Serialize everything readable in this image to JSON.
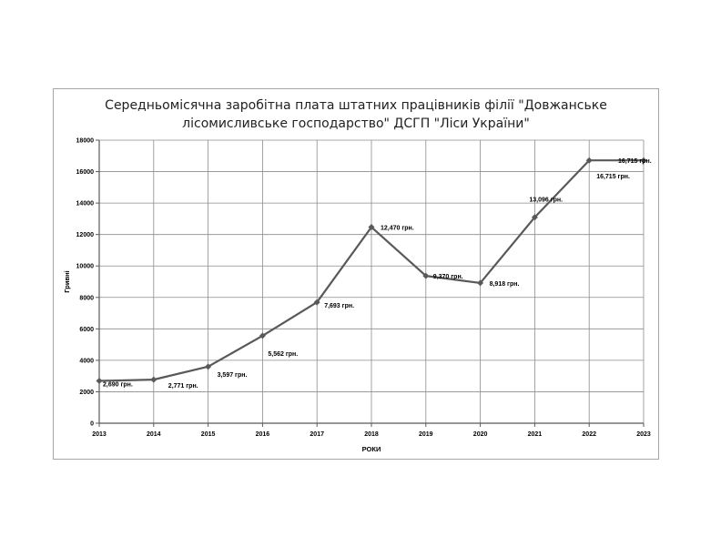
{
  "chart_data": {
    "type": "line",
    "title": "Середньомісячна заробітна плата штатних працівників філії \"Довжанське лісомисливське господарство\" ДСГП \"Ліси України\"",
    "xlabel": "РОКИ",
    "ylabel": "Гривні",
    "categories": [
      "2013",
      "2014",
      "2015",
      "2016",
      "2017",
      "2018",
      "2019",
      "2020",
      "2021",
      "2022",
      "2023"
    ],
    "yticks": [
      "0",
      "2000",
      "4000",
      "6000",
      "8000",
      "10000",
      "12000",
      "14000",
      "16000",
      "18000"
    ],
    "ylim": [
      0,
      18000
    ],
    "grid": true,
    "series": [
      {
        "values": [
          2690,
          2771,
          3597,
          5562,
          7693,
          12470,
          9370,
          8918,
          13096,
          16715,
          16715
        ],
        "labels": [
          "2,690 грн.",
          "2,771 грн.",
          "3,597 грн.",
          "5,562 грн.",
          "7,693 грн.",
          "12,470 грн.",
          "9,370 грн.",
          "8,918 грн.",
          "13,096 грн.",
          "16,715 грн.",
          "16,715 грн."
        ]
      }
    ],
    "colors": {
      "line": "#595959",
      "grid": "#8c8c8c",
      "axis": "#595959"
    }
  }
}
